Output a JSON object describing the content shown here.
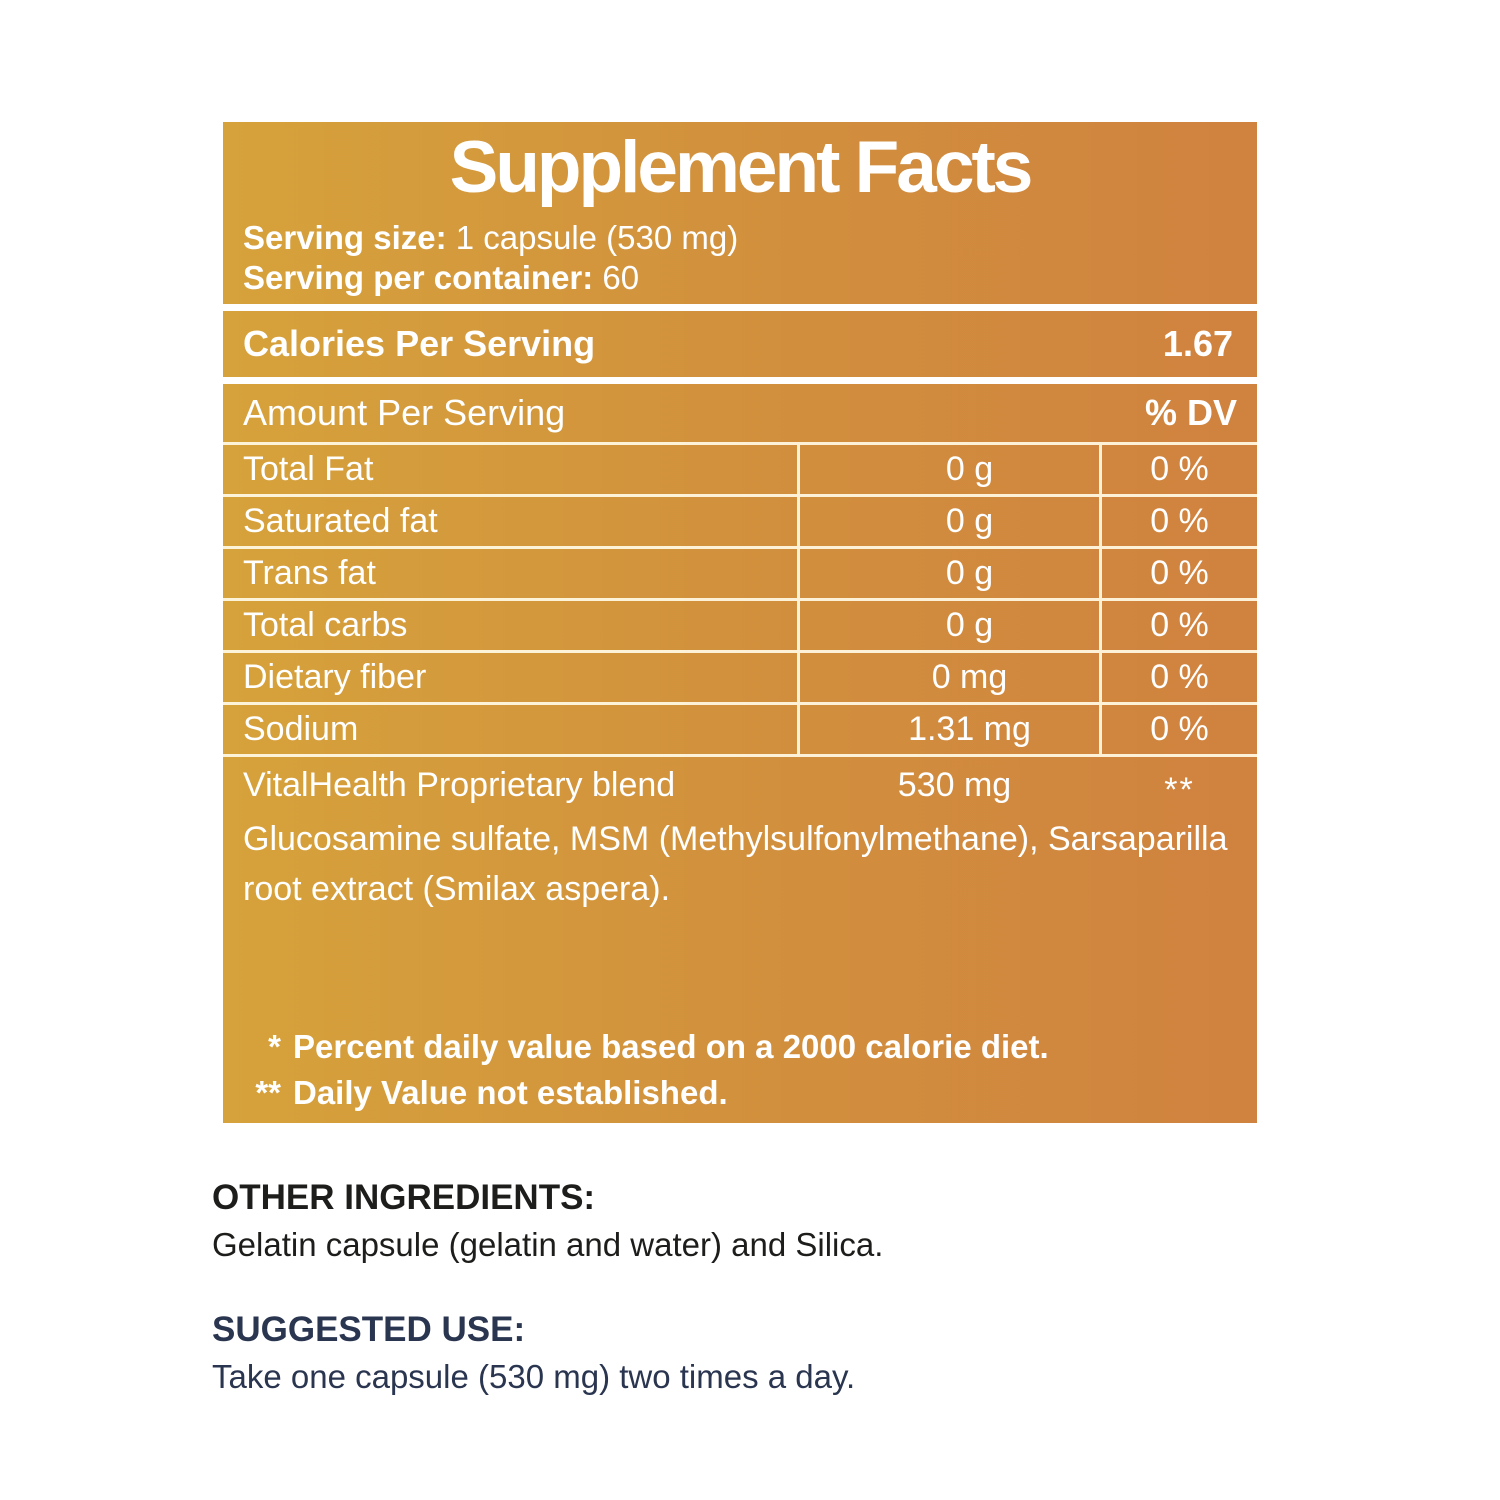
{
  "label": {
    "title": "Supplement Facts",
    "serving_size_label": "Serving size:",
    "serving_size_value": " 1 capsule (530 mg)",
    "servings_per_container_label": "Serving per container:",
    "servings_per_container_value": " 60",
    "calories_label": "Calories Per Serving",
    "calories_value": "1.67",
    "table": {
      "amount_header": "Amount Per Serving",
      "dv_header": "% DV",
      "rows": [
        {
          "name": "Total Fat",
          "amount": "0 g",
          "dv": "0 %"
        },
        {
          "name": "Saturated fat",
          "amount": "0 g",
          "dv": "0 %"
        },
        {
          "name": "Trans fat",
          "amount": "0 g",
          "dv": "0 %"
        },
        {
          "name": "Total carbs",
          "amount": "0 g",
          "dv": "0 %"
        },
        {
          "name": "Dietary fiber",
          "amount": "0 mg",
          "dv": "0 %"
        },
        {
          "name": "Sodium",
          "amount": "1.31 mg",
          "dv": "0 %"
        }
      ],
      "blend": {
        "name": "VitalHealth Proprietary blend",
        "amount": "530 mg",
        "dv": "**"
      },
      "blend_description": "Glucosamine sulfate, MSM (Methylsulfonylmethane), Sarsaparilla root extract (Smilax aspera)."
    },
    "footnotes": [
      {
        "marker": "*",
        "text": "Percent daily value based on a 2000 calorie diet."
      },
      {
        "marker": "**",
        "text": "Daily Value not established."
      }
    ]
  },
  "other_ingredients": {
    "heading": "OTHER INGREDIENTS:",
    "text": "Gelatin capsule (gelatin and water) and Silica."
  },
  "suggested_use": {
    "heading": "SUGGESTED USE:",
    "text": "Take one capsule (530 mg) two times a day."
  },
  "colors": {
    "panel_gradient_left": "#d6a23b",
    "panel_gradient_right": "#d0823f",
    "panel_text": "#ffffff",
    "other_ingredients_text": "#1d1d1b",
    "suggested_use_text": "#2a3550"
  }
}
